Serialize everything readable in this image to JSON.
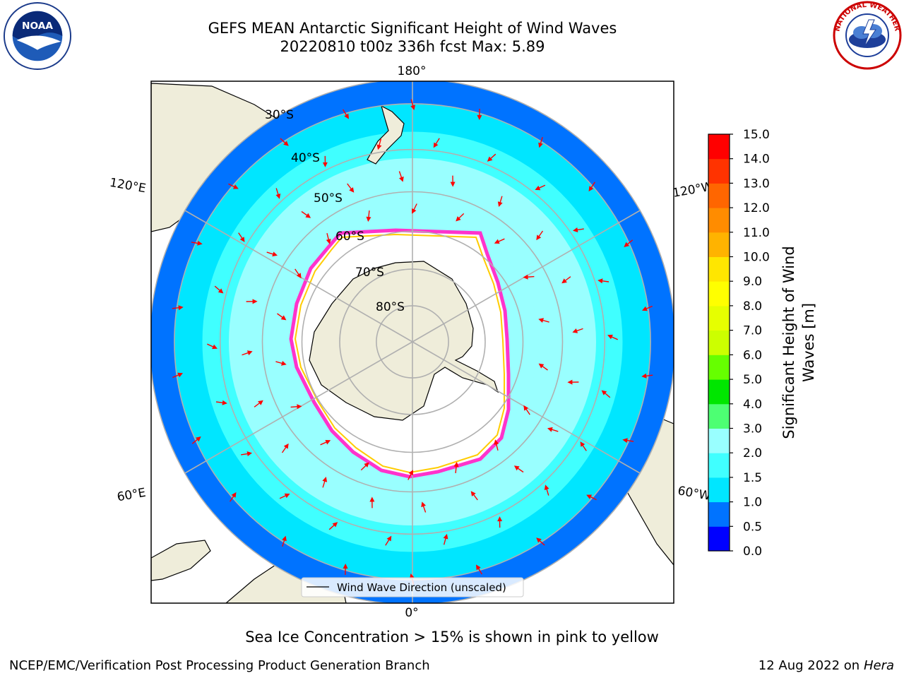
{
  "title_line1": "GEFS MEAN Antarctic Significant Height of Wind Waves",
  "title_line2": "20220810 t00z 336h fcst   Max: 5.89",
  "map": {
    "projection": "south-polar-stereographic",
    "longitude_labels": [
      {
        "text": "180°",
        "lon": 180
      },
      {
        "text": "120°E",
        "lon": 120
      },
      {
        "text": "120°W",
        "lon": -120
      },
      {
        "text": "60°E",
        "lon": 60
      },
      {
        "text": "60°W",
        "lon": -60
      },
      {
        "text": "0°",
        "lon": 0
      }
    ],
    "latitude_labels": [
      {
        "text": "30°S",
        "lat": -30
      },
      {
        "text": "40°S",
        "lat": -40
      },
      {
        "text": "50°S",
        "lat": -50
      },
      {
        "text": "60°S",
        "lat": -60
      },
      {
        "text": "70°S",
        "lat": -70
      },
      {
        "text": "80°S",
        "lat": -80
      }
    ],
    "grid": true,
    "boundary_lat": -25,
    "wave_height_bands_m": [
      {
        "from_lat": -25,
        "to_lat": -30,
        "value": 0.8
      },
      {
        "from_lat": -30,
        "to_lat": -36,
        "value": 1.3
      },
      {
        "from_lat": -36,
        "to_lat": -42,
        "value": 1.8
      },
      {
        "from_lat": -42,
        "to_lat": -50,
        "value": 2.5
      },
      {
        "from_lat": -50,
        "to_lat": -56,
        "value": 2.8
      },
      {
        "from_lat": -56,
        "to_lat": -62,
        "value": 2.2
      }
    ],
    "max_value_m": 5.89
  },
  "legend": {
    "entry": "Wind Wave Direction (unscaled)",
    "placement": "lower-center"
  },
  "colorbar": {
    "label_line1": "Significant Height of Wind",
    "label_line2": "Waves [m]",
    "ticks": [
      "0.0",
      "0.5",
      "1.0",
      "1.5",
      "2.0",
      "3.0",
      "4.0",
      "5.0",
      "6.0",
      "7.0",
      "8.0",
      "9.0",
      "10.0",
      "11.0",
      "12.0",
      "13.0",
      "14.0",
      "15.0"
    ],
    "colors": [
      "#0000ff",
      "#0073ff",
      "#00e6ff",
      "#40ffff",
      "#99ffff",
      "#4dff73",
      "#00e600",
      "#66ff00",
      "#ccff00",
      "#e6ff00",
      "#ffff00",
      "#ffe600",
      "#ffb300",
      "#ff8c00",
      "#ff6600",
      "#ff3300",
      "#ff0000"
    ]
  },
  "colors": {
    "land": "#efedda",
    "ice_edge": "#ff33cc",
    "ice_inner": "#ffcc00",
    "arrows": "#ff0000",
    "gridlines": "#b0b0b0"
  },
  "logos": {
    "left": "noaa-logo",
    "right": "nws-logo"
  },
  "footer": {
    "note": "Sea Ice Concentration > 15% is shown in pink to yellow",
    "credit": "NCEP/EMC/Verification Post Processing Product Generation Branch",
    "date": "12 Aug 2022 on",
    "host": "Hera"
  }
}
